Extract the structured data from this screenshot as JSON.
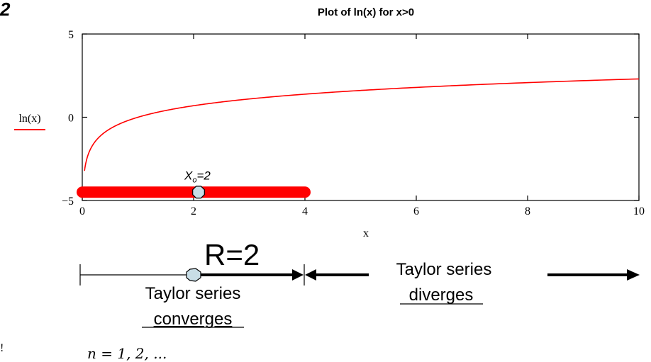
{
  "page": {
    "corner_label": "2",
    "series_legend": "ln(x)",
    "bottom_left_fragment": "!",
    "bottom_formula": "n = 1, 2, ..."
  },
  "chart_data": {
    "type": "line",
    "title": "Plot of ln(x) for x>0",
    "xlabel": "x",
    "ylabel": "ln(x)",
    "xlim": [
      0,
      10
    ],
    "ylim": [
      -5,
      5
    ],
    "x_ticks": [
      0,
      2,
      4,
      6,
      8,
      10
    ],
    "y_ticks": [
      -5,
      0,
      5
    ],
    "x_tick_labels": [
      "0",
      "2",
      "4",
      "6",
      "8",
      "10"
    ],
    "y_tick_labels": [
      "−5",
      "0",
      "5"
    ],
    "grid": false,
    "series": [
      {
        "name": "ln(x)",
        "color": "#ff0000",
        "function": "ln",
        "x_range": [
          0.04,
          10
        ]
      }
    ],
    "interval": {
      "from": 0,
      "to": 4,
      "y": -4.5,
      "color": "#ff0000"
    },
    "center_point": {
      "x": 2,
      "y": -4.5,
      "label": "X",
      "label_sub": "o",
      "label_suffix": "=2",
      "fill": "#c8dde6"
    }
  },
  "diagram": {
    "radius_label": "R=2",
    "converges_line1": "Taylor series",
    "converges_line2": "converges",
    "diverges_line1": "Taylor series",
    "diverges_line2": "diverges"
  }
}
